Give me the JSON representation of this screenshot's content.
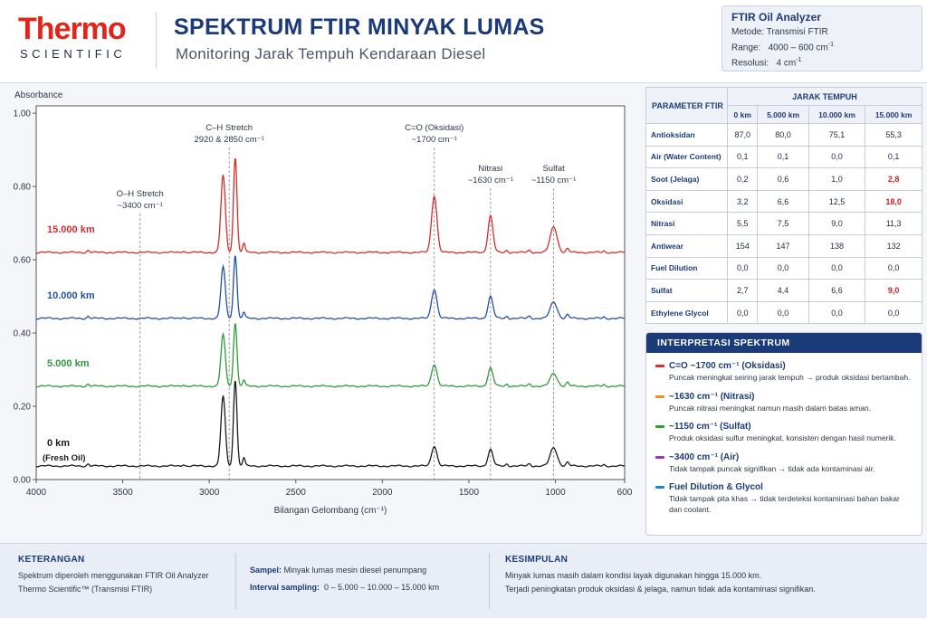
{
  "header": {
    "logo_main": "Thermo",
    "logo_sub": "SCIENTIFIC",
    "title": "SPEKTRUM FTIR MINYAK LUMAS",
    "subtitle": "Monitoring Jarak Tempuh Kendaraan Diesel"
  },
  "analyzer": {
    "title": "FTIR Oil Analyzer",
    "metode": "Metode: Transmisi FTIR",
    "range_label": "Range:",
    "range_value": "4000 – 600 cm",
    "resolusi_label": "Resolusi:",
    "resolusi_value": "4 cm",
    "unit_sup": "-1"
  },
  "chart_data": {
    "type": "line",
    "ylabel": "Absorbance",
    "xlabel": "Bilangan Gelombang (cm⁻¹)",
    "xlim": [
      4000,
      600
    ],
    "ylim": [
      0,
      1.02
    ],
    "x_ticks": [
      4000,
      3500,
      3000,
      2500,
      2000,
      1500,
      1000,
      600
    ],
    "y_ticks": [
      "0.00",
      "0.20",
      "0.40",
      "0.60",
      "0.80",
      "1.00"
    ],
    "grid": false,
    "annotations": [
      {
        "label1": "O–H Stretch",
        "label2": "~3400 cm⁻¹",
        "x": 3400
      },
      {
        "label1": "C–H Stretch",
        "label2": "2920 & 2850 cm⁻¹",
        "x": 2885
      },
      {
        "label1": "C=O (Oksidasi)",
        "label2": "~1700 cm⁻¹",
        "x": 1700
      },
      {
        "label1": "Nitrasi",
        "label2": "~1630 cm⁻¹",
        "x": 1375
      },
      {
        "label1": "Sulfat",
        "label2": "~1150 cm⁻¹",
        "x": 1010
      }
    ],
    "peaks": [
      {
        "x": 2920,
        "w": 18,
        "scale": 1.0
      },
      {
        "x": 2850,
        "w": 14,
        "scale": 1.25
      },
      {
        "x": 2800,
        "w": 10,
        "scale": 0.12
      },
      {
        "x": 1700,
        "w": 22,
        "scale": 1.0
      },
      {
        "x": 1375,
        "w": 20,
        "scale": 1.0
      },
      {
        "x": 1010,
        "w": 28,
        "scale": 1.0
      },
      {
        "x": 930,
        "w": 12,
        "scale": 0.25
      },
      {
        "x": 3700,
        "w": 10,
        "scale": 0.15
      },
      {
        "x": 3150,
        "w": 10,
        "scale": 0.12
      },
      {
        "x": 1280,
        "w": 10,
        "scale": 0.15
      },
      {
        "x": 1150,
        "w": 12,
        "scale": 0.15
      },
      {
        "x": 720,
        "w": 8,
        "scale": 0.1
      }
    ],
    "series": [
      {
        "name": "0 km",
        "sublabel": "(Fresh Oil)",
        "color": "#1a1a1a",
        "baseline": 0.037,
        "ch": 0.19,
        "co": 0.055,
        "nit": 0.045,
        "sul": 0.05
      },
      {
        "name": "5.000 km",
        "sublabel": "",
        "color": "#2e9a3a",
        "baseline": 0.255,
        "ch": 0.14,
        "co": 0.06,
        "nit": 0.05,
        "sul": 0.035
      },
      {
        "name": "10.000 km",
        "sublabel": "",
        "color": "#2450a4",
        "baseline": 0.44,
        "ch": 0.14,
        "co": 0.08,
        "nit": 0.06,
        "sul": 0.045
      },
      {
        "name": "15.000 km",
        "sublabel": "",
        "color": "#d92b2b",
        "baseline": 0.62,
        "ch": 0.21,
        "co": 0.155,
        "nit": 0.1,
        "sul": 0.07
      }
    ]
  },
  "table": {
    "header_param": "PARAMETER FTIR",
    "header_group": "JARAK TEMPUH",
    "columns": [
      "0 km",
      "5.000 km",
      "10.000 km",
      "15.000 km"
    ],
    "rows": [
      {
        "name": "Antioksidan",
        "values": [
          "87,0",
          "80,0",
          "75,1",
          "55,3"
        ],
        "red": [
          false,
          false,
          false,
          false
        ]
      },
      {
        "name": "Air (Water Content)",
        "values": [
          "0,1",
          "0,1",
          "0,0",
          "0,1"
        ],
        "red": [
          false,
          false,
          false,
          false
        ]
      },
      {
        "name": "Soot (Jelaga)",
        "values": [
          "0,2",
          "0,6",
          "1,0",
          "2,8"
        ],
        "red": [
          false,
          false,
          false,
          true
        ]
      },
      {
        "name": "Oksidasi",
        "values": [
          "3,2",
          "6,6",
          "12,5",
          "18,0"
        ],
        "red": [
          false,
          false,
          false,
          true
        ]
      },
      {
        "name": "Nitrasi",
        "values": [
          "5,5",
          "7,5",
          "9,0",
          "11,3"
        ],
        "red": [
          false,
          false,
          false,
          false
        ]
      },
      {
        "name": "Antiwear",
        "values": [
          "154",
          "147",
          "138",
          "132"
        ],
        "red": [
          false,
          false,
          false,
          false
        ]
      },
      {
        "name": "Fuel Dilution",
        "values": [
          "0,0",
          "0,0",
          "0,0",
          "0,0"
        ],
        "red": [
          false,
          false,
          false,
          false
        ]
      },
      {
        "name": "Sulfat",
        "values": [
          "2,7",
          "4,4",
          "6,6",
          "9,0"
        ],
        "red": [
          false,
          false,
          false,
          true
        ]
      },
      {
        "name": "Ethylene Glycol",
        "values": [
          "0,0",
          "0,0",
          "0,0",
          "0,0"
        ],
        "red": [
          false,
          false,
          false,
          false
        ]
      }
    ]
  },
  "interpretation": {
    "title": "INTERPRETASI SPEKTRUM",
    "items": [
      {
        "color": "#d92b2b",
        "head": "C=O ~1700 cm⁻¹ (Oksidasi)",
        "desc": "Puncak meningkat seiring jarak tempuh → produk oksidasi bertambah."
      },
      {
        "color": "#f28c1e",
        "head": "~1630 cm⁻¹ (Nitrasi)",
        "desc": "Puncak nitrasi meningkat namun masih dalam batas aman."
      },
      {
        "color": "#2e9a3a",
        "head": "~1150 cm⁻¹ (Sulfat)",
        "desc": "Produk oksidasi sulfur meningkat, konsisten dengan hasil numerik."
      },
      {
        "color": "#8e3fb0",
        "head": "~3400 cm⁻¹ (Air)",
        "desc": "Tidak tampak puncak signifikan → tidak ada kontaminasi air."
      },
      {
        "color": "#1e7fd6",
        "head": "Fuel Dilution & Glycol",
        "desc": "Tidak tampak pita khas → tidak terdeteksi kontaminasi bahan bakar dan coolant."
      }
    ]
  },
  "footer": {
    "keterangan_title": "KETERANGAN",
    "keterangan_line1": "Spektrum diperoleh menggunakan FTIR Oil Analyzer",
    "keterangan_line2": "Thermo Scientific™ (Transmisi FTIR)",
    "sampel_label": "Sampel:",
    "sampel_value": "Minyak lumas mesin diesel penumpang",
    "interval_label": "Interval sampling:",
    "interval_value": "0 – 5.000 – 10.000 – 15.000 km",
    "kesimpulan_title": "KESIMPULAN",
    "kesimpulan_line1": "Minyak lumas masih dalam kondisi layak digunakan hingga 15.000 km.",
    "kesimpulan_line2": "Terjadi peningkatan produk oksidasi & jelaga, namun tidak ada kontaminasi signifikan."
  }
}
